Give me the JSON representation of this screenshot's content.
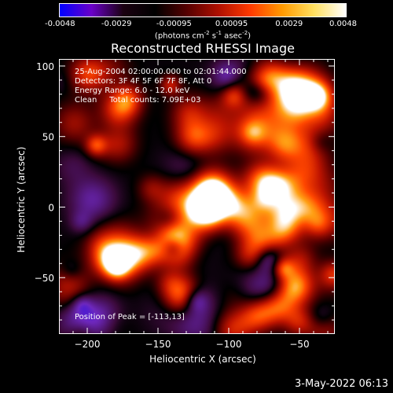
{
  "colorbar": {
    "ticks": [
      "-0.0048",
      "-0.0029",
      "-0.00095",
      "0.00095",
      "0.0029",
      "0.0048"
    ],
    "units_main": "(photons cm",
    "units_exp1": "-2",
    "units_mid1": " s",
    "units_exp2": "-1",
    "units_mid2": " asec",
    "units_exp3": "-2",
    "units_end": ")",
    "colors": [
      "#0000ff",
      "#6a00c8",
      "#1a0010",
      "#000000",
      "#550000",
      "#b01000",
      "#ff3a00",
      "#ff9a00",
      "#ffe060",
      "#ffffff"
    ]
  },
  "chart_data": {
    "type": "heatmap",
    "title": "Reconstructed RHESSI Image",
    "xlabel": "Heliocentric X (arcsec)",
    "ylabel": "Heliocentric Y (arcsec)",
    "xlim": [
      -220,
      -25
    ],
    "ylim": [
      -90,
      105
    ],
    "xticks": [
      -200,
      -150,
      -100,
      -50
    ],
    "yticks": [
      -50,
      0,
      50,
      100
    ],
    "xtick_labels": [
      "−200",
      "−150",
      "−100",
      "−50"
    ],
    "ytick_labels": [
      "−50",
      "0",
      "50",
      "100"
    ],
    "value_range": [
      -0.0048,
      0.0048
    ],
    "peak": [
      -113,
      13
    ],
    "peak_value": 0.0048,
    "bright_sources": [
      {
        "x": -113,
        "y": 13,
        "value": 0.0048
      },
      {
        "x": -125,
        "y": 50,
        "value": 0.0029
      },
      {
        "x": -178,
        "y": 70,
        "value": 0.0029
      },
      {
        "x": -180,
        "y": 45,
        "value": 0.0029
      },
      {
        "x": -135,
        "y": -65,
        "value": 0.0029
      },
      {
        "x": -60,
        "y": 45,
        "value": 0.0029
      },
      {
        "x": -60,
        "y": -20,
        "value": 0.0029
      },
      {
        "x": -75,
        "y": -75,
        "value": 0.0029
      },
      {
        "x": -200,
        "y": 95,
        "value": 0.0029
      },
      {
        "x": -55,
        "y": -55,
        "value": 0.0029
      }
    ]
  },
  "info": {
    "line1": "25-Aug-2004 02:00:00.000 to 02:01:44.000",
    "line2": "Detectors: 3F 4F 5F 6F 7F 8F, Att 0",
    "line3": "Energy Range: 6.0 - 12.0 keV",
    "line4": "Clean     Total counts: 7.09E+03",
    "peak_text": "Position of Peak = [-113,13]"
  },
  "timestamp": "3-May-2022 06:13"
}
